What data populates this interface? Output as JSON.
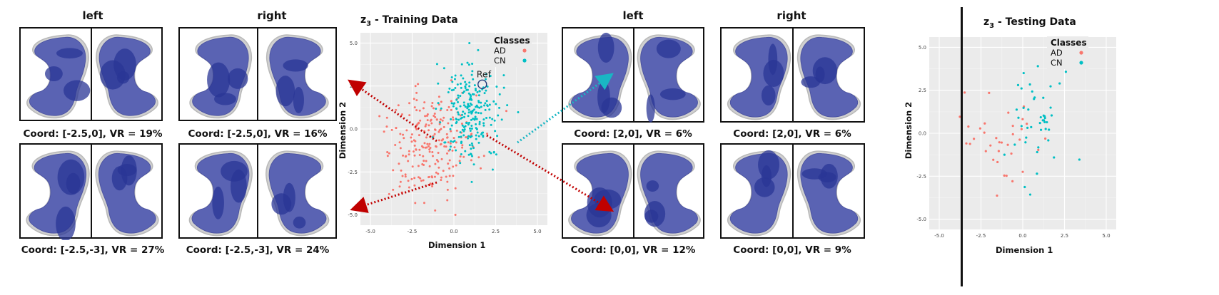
{
  "column_headers": {
    "left": "left",
    "right": "right"
  },
  "captions": {
    "tl": "Coord: [-2.5,0], VR = 19%",
    "tr": "Coord: [-2.5,0], VR = 16%",
    "bl": "Coord: [-2.5,-3], VR = 27%",
    "br": "Coord: [-2.5,-3], VR = 24%",
    "r_tl": "Coord: [2,0], VR = 6%",
    "r_tr": "Coord: [2,0], VR = 6%",
    "r_bl": "Coord: [0,0], VR = 12%",
    "r_br": "Coord: [0,0], VR = 9%"
  },
  "colors": {
    "AD": "#f8766d",
    "CN": "#00bfc4",
    "arrow_red": "#c00000",
    "arrow_teal": "#19b6c4",
    "shape_fill": "#5a63b3",
    "shape_dark": "#2a3596"
  },
  "chart_data": [
    {
      "type": "scatter",
      "title_main": "z",
      "title_sub": "3",
      "title_rest": " - Training Data",
      "xlabel": "Dimension 1",
      "ylabel": "Dimension 2",
      "xlim": [
        -5.6,
        5.6
      ],
      "ylim": [
        -5.6,
        5.6
      ],
      "xticks": [
        "-5.0",
        "-2.5",
        "0.0",
        "2.5",
        "5.0"
      ],
      "yticks": [
        "5.0",
        "2.5",
        "0.0",
        "-2.5",
        "-5.0"
      ],
      "grid": true,
      "legend": {
        "title": "Classes",
        "entries": [
          "AD",
          "CN"
        ],
        "position": "top-right"
      },
      "annotation": {
        "label": "Ref",
        "x": 1.7,
        "y": 2.6
      },
      "series": [
        {
          "name": "AD",
          "cluster": {
            "cx": -1.4,
            "cy": -0.8,
            "sx": 1.3,
            "sy": 1.7,
            "n": 230
          }
        },
        {
          "name": "CN",
          "cluster": {
            "cx": 1.1,
            "cy": 0.9,
            "sx": 0.9,
            "sy": 1.6,
            "n": 230
          }
        }
      ]
    },
    {
      "type": "scatter",
      "title_main": "z",
      "title_sub": "3",
      "title_rest": " - Testing Data",
      "xlabel": "Dimension 1",
      "ylabel": "Dimension 2",
      "xlim": [
        -5.6,
        5.6
      ],
      "ylim": [
        -5.6,
        5.6
      ],
      "xticks": [
        "-5.0",
        "-2.5",
        "0.0",
        "2.5",
        "5.0"
      ],
      "yticks": [
        "5.0",
        "2.5",
        "0.0",
        "-2.5",
        "-5.0"
      ],
      "grid": true,
      "legend": {
        "title": "Classes",
        "entries": [
          "AD",
          "CN"
        ],
        "position": "top-right"
      },
      "series": [
        {
          "name": "AD",
          "cluster": {
            "cx": -1.6,
            "cy": -0.6,
            "sx": 1.1,
            "sy": 1.6,
            "n": 35
          }
        },
        {
          "name": "CN",
          "cluster": {
            "cx": 0.9,
            "cy": 0.9,
            "sx": 0.8,
            "sy": 1.6,
            "n": 45
          }
        }
      ]
    }
  ]
}
